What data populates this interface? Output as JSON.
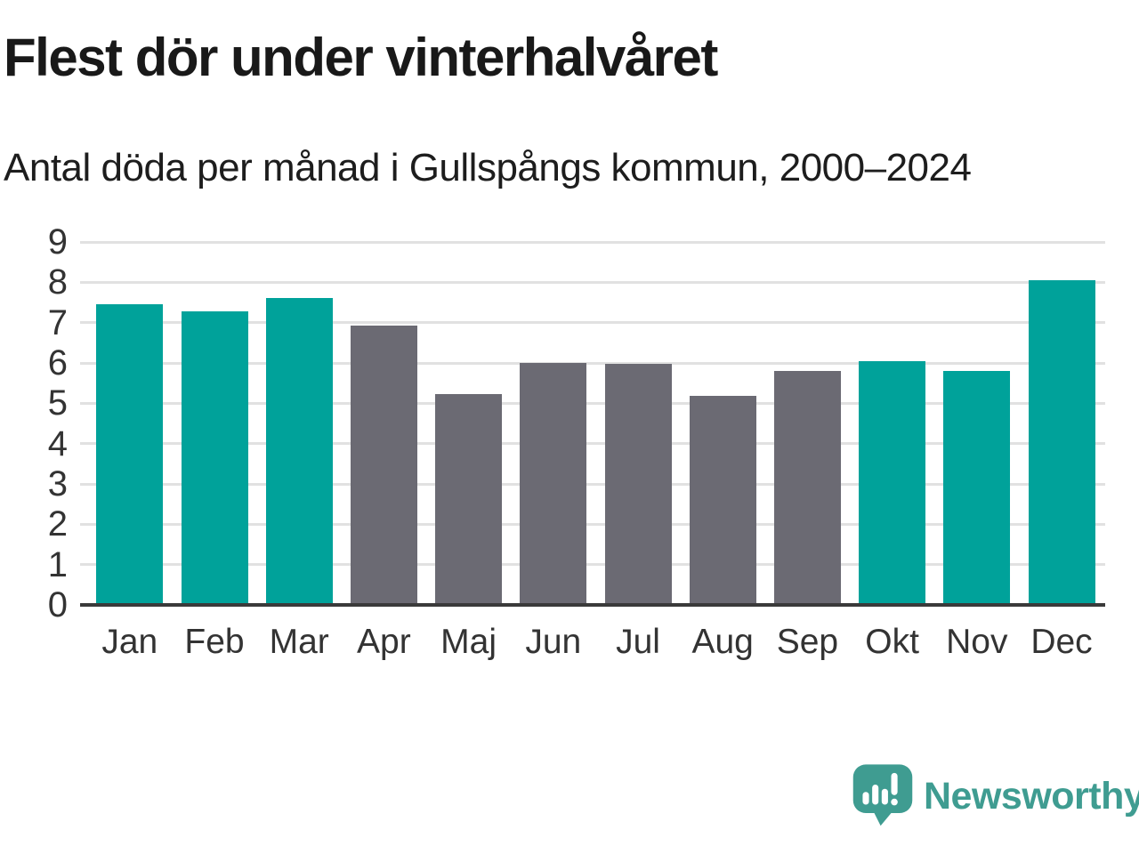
{
  "header": {
    "title": "Flest dör under vinterhalvåret",
    "subtitle": "Antal döda per månad i Gullspångs kommun, 2000–2024"
  },
  "chart_data": {
    "type": "bar",
    "title": "Flest dör under vinterhalvåret",
    "subtitle": "Antal döda per månad i Gullspångs kommun, 2000–2024",
    "categories": [
      "Jan",
      "Feb",
      "Mar",
      "Apr",
      "Maj",
      "Jun",
      "Jul",
      "Aug",
      "Sep",
      "Okt",
      "Nov",
      "Dec"
    ],
    "values": [
      7.45,
      7.27,
      7.62,
      6.92,
      5.22,
      6.0,
      5.98,
      5.18,
      5.81,
      6.05,
      5.8,
      8.06
    ],
    "bar_colors": [
      "teal",
      "teal",
      "teal",
      "gray",
      "gray",
      "gray",
      "gray",
      "gray",
      "gray",
      "teal",
      "teal",
      "teal"
    ],
    "color_map": {
      "teal": "#00a29a",
      "gray": "#6b6a73"
    },
    "highlight_meaning": "winter half-year months (teal)",
    "xlabel": "",
    "ylabel": "",
    "ylim": [
      0,
      9
    ],
    "yticks": [
      0,
      1,
      2,
      3,
      4,
      5,
      6,
      7,
      8,
      9
    ],
    "grid": true,
    "legend": false
  },
  "footer": {
    "brand": "Newsworthy",
    "brand_color": "#3f9c91",
    "logo_icon": "newsworthy-speech-bubble-barchart-icon"
  }
}
